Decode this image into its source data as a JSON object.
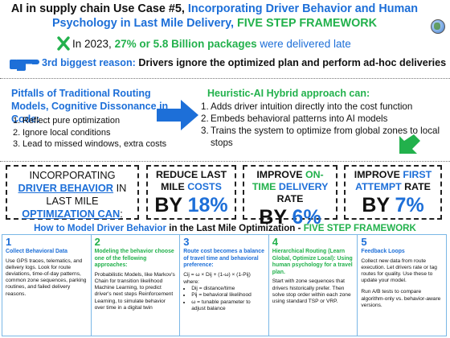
{
  "title": {
    "part1": "AI in supply chain Use Case #5,",
    "part2": "Incorporating Driver Behavior and Human Psychology in Last Mile Delivery,",
    "part3": "FIVE STEP FRAMEWORK"
  },
  "stat": {
    "prefix": "In 2023,",
    "highlight": "27% or 5.8 Billion packages",
    "suffix": "were delivered late"
  },
  "reason": {
    "label": "3rd biggest reason:",
    "text": "Drivers ignore the optimized plan and perform ad-hoc deliveries"
  },
  "pitfalls": {
    "title": "Pitfalls of Traditional Routing Models, Cognitive Dissonance in Code:",
    "items": [
      {
        "num": "1.",
        "text": "Reflect pure optimization"
      },
      {
        "num": "2.",
        "text": "Ignore local conditions"
      },
      {
        "num": "3.",
        "text": "Lead to missed windows, extra costs"
      }
    ]
  },
  "hybrid": {
    "title": "Heuristic-AI Hybrid approach can:",
    "items": [
      {
        "num": "1.",
        "text": "Adds driver intuition directly into the cost function"
      },
      {
        "num": "2.",
        "text": "Embeds behavioral patterns into AI models"
      },
      {
        "num": "3.",
        "text": "Trains the system to optimize from global zones to local stops"
      }
    ]
  },
  "kpis": {
    "intro": {
      "a": "INCORPORATING",
      "b": "DRIVER BEHAVIOR",
      "c": "IN LAST MILE",
      "d": "OPTIMIZATION CAN",
      "e": ":"
    },
    "k1": {
      "head": "REDUCE LAST MILE",
      "head_blue": "COSTS",
      "by": "BY",
      "value": "18%"
    },
    "k2": {
      "head": "IMPROVE",
      "head_green": "ON- TIME",
      "head_blue": "DELIVERY",
      "head_tail": "RATE",
      "by": "BY",
      "value": "6%"
    },
    "k3": {
      "head": "IMPROVE",
      "head_blue": "FIRST ATTEMPT",
      "head_tail": "RATE",
      "by": "BY",
      "value": "7%"
    }
  },
  "model": {
    "a": "How to Model Driver Behavior",
    "b": "in the Last Mile Optimization -",
    "c": "FIVE STEP FRAMEWORK"
  },
  "steps": [
    {
      "num": "1",
      "title": "Collect Behavioral Data",
      "body": "Use GPS traces, telematics, and delivery logs. Look for route deviations, time-of-day patterns, common zone sequences, parking routines, and failed delivery reasons."
    },
    {
      "num": "2",
      "title": "Modeling the behavior choose one of the fellowing approaches:",
      "body": "Probabilistic Models, like Markov's Chain for transition likelihood Machine Learning, to predict driver's next steps Reinforcement Learning, to simulate behavior over time in a digital twin"
    },
    {
      "num": "3",
      "title": "Route cost becomes a balance of travel time and behavioral preference:",
      "formula": "Cij = ω × Dij + (1-ω) × (1-Pij)",
      "where": "where:",
      "bullets": [
        "Dij = distance/time",
        "Pij = behavioral likelihood",
        "ω = tunable parameter to adjust balance"
      ]
    },
    {
      "num": "4",
      "title": "Hierarchical Routing (Learn Global, Optimize Local): Using human psychology for a travel plan.",
      "body": "Start with zone sequences that drivers historically prefer. Then solve stop order within each zone using standard TSP or VRP."
    },
    {
      "num": "5",
      "title": "Feedback Loops",
      "body": "Collect new data from route execution. Let drivers rate or tag routes for quality. Use these to update your model.",
      "body2": "Run A/B tests to compare algorithm-only vs. behavior-aware versions."
    }
  ],
  "colors": {
    "blue": "#1d6fd8",
    "green": "#22b14c",
    "step_border": "#7ab7e6"
  },
  "icons": [
    "x-mark-icon",
    "pointing-hand-icon",
    "right-arrow-icon",
    "down-arrow-icon",
    "globe-icon"
  ]
}
